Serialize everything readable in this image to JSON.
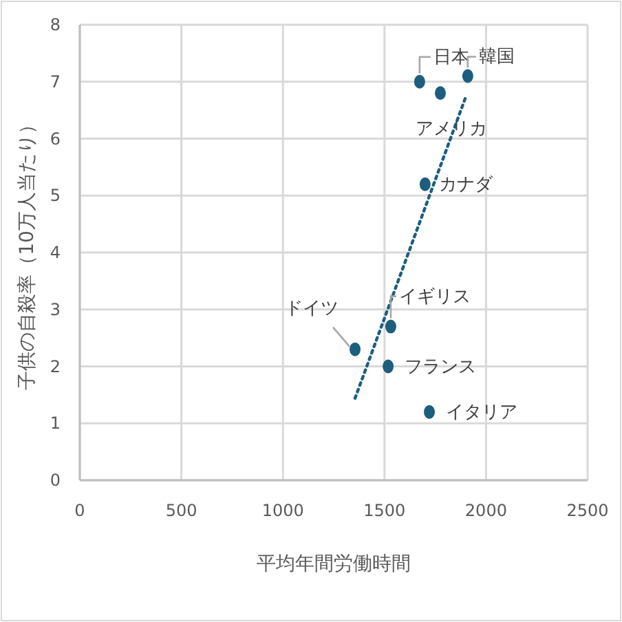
{
  "chart_data": {
    "type": "scatter",
    "xlabel": "平均年間労働時間",
    "ylabel": "子供の自殺率（10万人当たり）",
    "xlim": [
      0,
      2500
    ],
    "xticks": [
      0,
      500,
      1000,
      1500,
      2000,
      2500
    ],
    "ylim": [
      0,
      8
    ],
    "yticks": [
      0,
      1,
      2,
      3,
      4,
      5,
      6,
      7,
      8
    ],
    "grid": true,
    "series": [
      {
        "marker": "circle",
        "color": "#1d5e7e",
        "x": [
          1673,
          1775,
          1910,
          1700,
          1531,
          1355,
          1518,
          1721
        ],
        "values": [
          7.0,
          6.8,
          7.1,
          5.2,
          2.7,
          2.3,
          2.0,
          1.2
        ]
      },
      {
        "type": "line",
        "color": "#1d5e7e",
        "line_style": "dotted",
        "x": [
          1355,
          1904
        ],
        "values": [
          1.44,
          6.77
        ]
      }
    ],
    "annotations": [
      {
        "text": "日本",
        "x": 1673,
        "y": 7.0
      },
      {
        "text": "アメリカ",
        "x": 1775,
        "y": 6.8
      },
      {
        "text": "韓国",
        "x": 1910,
        "y": 7.1
      },
      {
        "text": "カナダ",
        "x": 1700,
        "y": 5.2
      },
      {
        "text": "イギリス",
        "x": 1531,
        "y": 2.7
      },
      {
        "text": "ドイツ",
        "x": 1355,
        "y": 2.3
      },
      {
        "text": "フランス",
        "x": 1518,
        "y": 2.0
      },
      {
        "text": "イタリア",
        "x": 1721,
        "y": 1.2
      }
    ]
  }
}
